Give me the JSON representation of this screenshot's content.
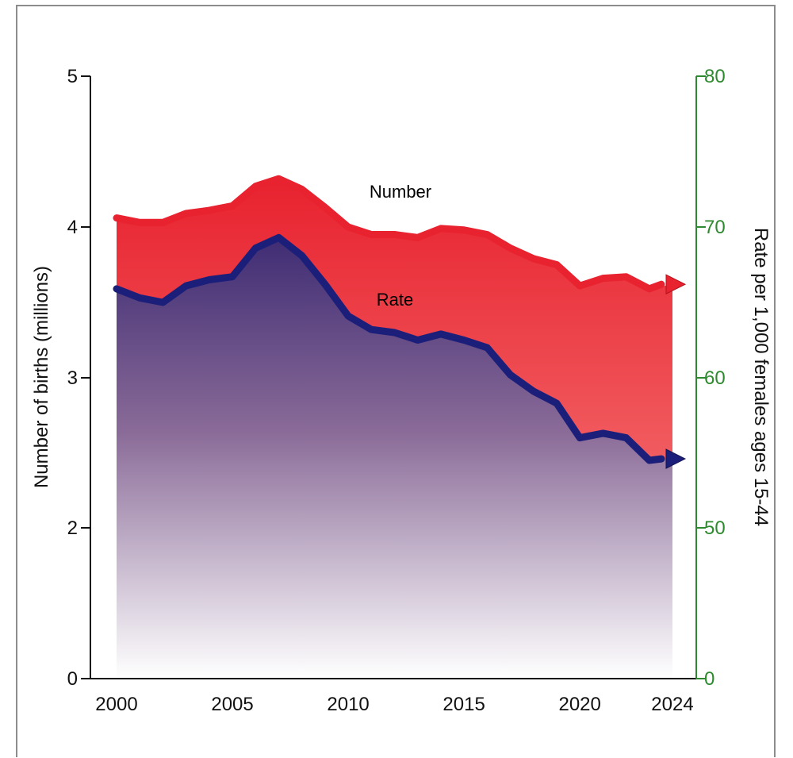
{
  "chart_data": {
    "type": "area",
    "x": [
      2000,
      2001,
      2002,
      2003,
      2004,
      2005,
      2006,
      2007,
      2008,
      2009,
      2010,
      2011,
      2012,
      2013,
      2014,
      2015,
      2016,
      2017,
      2018,
      2019,
      2020,
      2021,
      2022,
      2023,
      2024
    ],
    "xticks": [
      2000,
      2005,
      2010,
      2015,
      2020,
      2024
    ],
    "series": [
      {
        "name": "Number",
        "axis": "left",
        "color": "#e8222f",
        "values": [
          4.06,
          4.03,
          4.03,
          4.09,
          4.11,
          4.14,
          4.27,
          4.32,
          4.25,
          4.13,
          4.0,
          3.95,
          3.95,
          3.93,
          3.99,
          3.98,
          3.95,
          3.86,
          3.79,
          3.75,
          3.61,
          3.66,
          3.67,
          3.59,
          3.62
        ]
      },
      {
        "name": "Rate",
        "axis": "right",
        "color": "#1c1f7a",
        "values": [
          65.9,
          65.3,
          65.0,
          66.1,
          66.5,
          66.7,
          68.6,
          69.3,
          68.1,
          66.2,
          64.1,
          63.2,
          63.0,
          62.5,
          62.9,
          62.5,
          62.0,
          60.2,
          59.1,
          58.3,
          56.0,
          56.3,
          56.0,
          54.5,
          54.6
        ]
      }
    ],
    "left_axis": {
      "label": "Number of births (millions)",
      "ticks": [
        "0",
        "2",
        "3",
        "4",
        "5"
      ],
      "color": "#111111"
    },
    "right_axis": {
      "label": "Rate per 1,000 females ages 15-44",
      "ticks": [
        "0",
        "50",
        "60",
        "70",
        "80"
      ],
      "color": "#2e8a2e"
    },
    "grid": false,
    "legend": "inline labels"
  }
}
